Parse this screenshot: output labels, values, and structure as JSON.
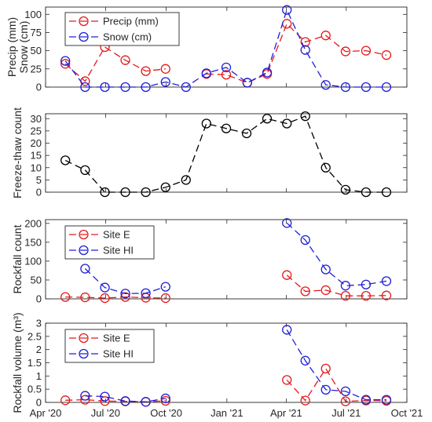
{
  "chart_data": {
    "type": "line",
    "x_axis": {
      "ticks": [
        "2020-04-01",
        "2020-07-01",
        "2020-10-01",
        "2021-01-01",
        "2021-04-01",
        "2021-07-01",
        "2021-10-01"
      ],
      "tick_labels": [
        "Apr '20",
        "Jul '20",
        "Oct '20",
        "Jan '21",
        "Apr '21",
        "Jul '21",
        "Oct '21"
      ],
      "range": [
        "2020-04-01",
        "2021-10-01"
      ]
    },
    "panels": [
      {
        "id": "precip-snow",
        "ylabel_lines": [
          "Precip (mm)",
          "Snow (cm)"
        ],
        "ylim": [
          0,
          110
        ],
        "yticks": [
          0,
          25,
          50,
          75,
          100
        ],
        "legend": "top-left",
        "series": [
          {
            "name": "Precip (mm)",
            "color": "#e41a1c",
            "x": [
              "2020-05-01",
              "2020-05-31",
              "2020-06-30",
              "2020-07-31",
              "2020-08-31",
              "2020-09-30"
            ],
            "y": [
              32,
              8,
              55,
              37,
              22,
              25
            ]
          },
          {
            "name": "Precip (mm)",
            "color": "#e41a1c",
            "x": [
              "2020-12-01",
              "2020-12-31",
              "2021-02-01",
              "2021-03-03",
              "2021-04-02",
              "2021-04-30",
              "2021-05-31",
              "2021-06-30",
              "2021-07-31",
              "2021-08-31"
            ],
            "y": [
              18,
              17,
              6,
              18,
              87,
              62,
              71,
              49,
              50,
              44
            ]
          },
          {
            "name": "Snow (cm)",
            "color": "#1f1fd6",
            "x": [
              "2020-05-01",
              "2020-05-31",
              "2020-06-30",
              "2020-07-31",
              "2020-08-31",
              "2020-09-30",
              "2020-10-31",
              "2020-12-01",
              "2020-12-31",
              "2021-02-01",
              "2021-03-03",
              "2021-04-02",
              "2021-04-30",
              "2021-05-31",
              "2021-06-30",
              "2021-07-31",
              "2021-08-31"
            ],
            "y": [
              36,
              0,
              0,
              0,
              0,
              7,
              0,
              19,
              27,
              6,
              20,
              106,
              51,
              3,
              0,
              0,
              0
            ]
          }
        ]
      },
      {
        "id": "freeze-thaw",
        "ylabel_lines": [
          "Freeze-thaw count"
        ],
        "ylim": [
          0,
          32
        ],
        "yticks": [
          0,
          5,
          10,
          15,
          20,
          25,
          30
        ],
        "legend": "none",
        "series": [
          {
            "name": "",
            "color": "#000000",
            "x": [
              "2020-05-01",
              "2020-05-31",
              "2020-06-30",
              "2020-07-31",
              "2020-08-31",
              "2020-09-30",
              "2020-10-31",
              "2020-12-01",
              "2020-12-31",
              "2021-01-31",
              "2021-03-03",
              "2021-04-02",
              "2021-04-30",
              "2021-05-31",
              "2021-06-30",
              "2021-07-31",
              "2021-08-31"
            ],
            "y": [
              13,
              9,
              0,
              0,
              0,
              2,
              5,
              28,
              26,
              24,
              30,
              28,
              31,
              10,
              1,
              0,
              0
            ]
          }
        ]
      },
      {
        "id": "rockfall-count",
        "ylabel_lines": [
          "Rockfall count"
        ],
        "ylim": [
          0,
          210
        ],
        "yticks": [
          0,
          50,
          100,
          150,
          200
        ],
        "legend": "top-left",
        "series": [
          {
            "name": "Site E",
            "color": "#e41a1c",
            "x": [
              "2020-05-01",
              "2020-05-31",
              "2020-06-30",
              "2020-07-31",
              "2020-08-31",
              "2020-09-30"
            ],
            "y": [
              5,
              4,
              2,
              5,
              3,
              2
            ]
          },
          {
            "name": "Site E",
            "color": "#e41a1c",
            "x": [
              "2021-04-02",
              "2021-04-30",
              "2021-05-31",
              "2021-06-30",
              "2021-07-31",
              "2021-08-31"
            ],
            "y": [
              63,
              20,
              23,
              8,
              8,
              9
            ]
          },
          {
            "name": "Site HI",
            "color": "#1f1fd6",
            "x": [
              "2020-05-31",
              "2020-06-30",
              "2020-07-31",
              "2020-08-31",
              "2020-09-30"
            ],
            "y": [
              80,
              30,
              14,
              15,
              32
            ]
          },
          {
            "name": "Site HI",
            "color": "#1f1fd6",
            "x": [
              "2021-04-02",
              "2021-04-30",
              "2021-05-31",
              "2021-06-30",
              "2021-07-31",
              "2021-08-31"
            ],
            "y": [
              201,
              156,
              78,
              35,
              38,
              47
            ]
          }
        ]
      },
      {
        "id": "rockfall-volume",
        "ylabel_lines": [
          "Rockfall volume (m³)"
        ],
        "ylim": [
          0,
          3
        ],
        "yticks": [
          0,
          0.5,
          1,
          1.5,
          2,
          2.5,
          3
        ],
        "ytick_labels": [
          "0",
          "0.5",
          "1",
          "1.5",
          "2",
          "2.5",
          "3"
        ],
        "legend": "top-left",
        "series": [
          {
            "name": "Site E",
            "color": "#e41a1c",
            "x": [
              "2020-05-01",
              "2020-05-31",
              "2020-06-30",
              "2020-07-31",
              "2020-08-31",
              "2020-09-30"
            ],
            "y": [
              0.08,
              0.1,
              0.05,
              0.04,
              0.02,
              0.06
            ]
          },
          {
            "name": "Site E",
            "color": "#e41a1c",
            "x": [
              "2021-04-02",
              "2021-04-30",
              "2021-05-31",
              "2021-06-30",
              "2021-07-31",
              "2021-08-31"
            ],
            "y": [
              0.85,
              0.07,
              1.28,
              0.04,
              0.07,
              0.06
            ]
          },
          {
            "name": "Site HI",
            "color": "#1f1fd6",
            "x": [
              "2020-05-31",
              "2020-06-30",
              "2020-07-31",
              "2020-08-31",
              "2020-09-30"
            ],
            "y": [
              0.25,
              0.22,
              0.05,
              0.02,
              0.15
            ]
          },
          {
            "name": "Site HI",
            "color": "#1f1fd6",
            "x": [
              "2021-04-02",
              "2021-04-30",
              "2021-05-31",
              "2021-06-30",
              "2021-07-31",
              "2021-08-31"
            ],
            "y": [
              2.75,
              1.58,
              0.48,
              0.42,
              0.1,
              0.1
            ]
          }
        ]
      }
    ]
  }
}
